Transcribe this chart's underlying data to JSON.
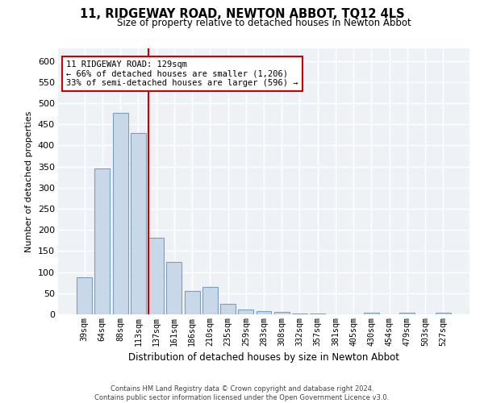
{
  "title": "11, RIDGEWAY ROAD, NEWTON ABBOT, TQ12 4LS",
  "subtitle": "Size of property relative to detached houses in Newton Abbot",
  "xlabel": "Distribution of detached houses by size in Newton Abbot",
  "ylabel": "Number of detached properties",
  "bar_color": "#c8d8e8",
  "bar_edgecolor": "#7aa0c0",
  "categories": [
    "39sqm",
    "64sqm",
    "88sqm",
    "113sqm",
    "137sqm",
    "161sqm",
    "186sqm",
    "210sqm",
    "235sqm",
    "259sqm",
    "283sqm",
    "308sqm",
    "332sqm",
    "357sqm",
    "381sqm",
    "405sqm",
    "430sqm",
    "454sqm",
    "479sqm",
    "503sqm",
    "527sqm"
  ],
  "values": [
    88,
    345,
    477,
    430,
    181,
    125,
    55,
    65,
    25,
    12,
    8,
    5,
    2,
    2,
    0,
    0,
    4,
    0,
    4,
    0,
    4
  ],
  "ylim": [
    0,
    630
  ],
  "yticks": [
    0,
    50,
    100,
    150,
    200,
    250,
    300,
    350,
    400,
    450,
    500,
    550,
    600
  ],
  "annotation_line1": "11 RIDGEWAY ROAD: 129sqm",
  "annotation_line2": "← 66% of detached houses are smaller (1,206)",
  "annotation_line3": "33% of semi-detached houses are larger (596) →",
  "line_color": "#cc0000",
  "footer1": "Contains HM Land Registry data © Crown copyright and database right 2024.",
  "footer2": "Contains public sector information licensed under the Open Government Licence v3.0.",
  "background_color": "#eef2f7",
  "grid_color": "#ffffff"
}
